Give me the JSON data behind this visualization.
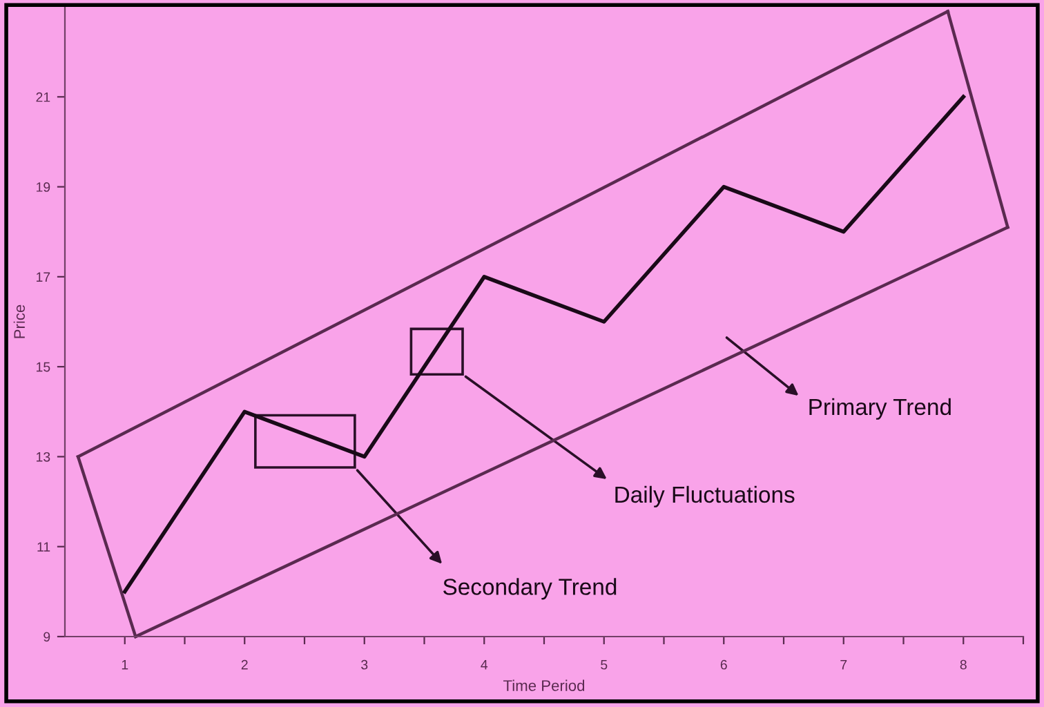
{
  "chart_data": {
    "type": "line",
    "xlabel": "Time Period",
    "ylabel": "Price",
    "x": [
      1,
      2,
      3,
      4,
      5,
      6,
      7,
      8
    ],
    "series": [
      {
        "color": "#1a0a18",
        "values": [
          10,
          14,
          13,
          17,
          16,
          19,
          18,
          21
        ]
      },
      {
        "color": "#5a2a50",
        "x": [
          0.61,
          7.87
        ],
        "values": [
          13,
          22.9
        ]
      },
      {
        "color": "#5a2a50",
        "x": [
          1.09,
          8.37
        ],
        "values": [
          9,
          18.1
        ]
      },
      {
        "color": "#5a2a50",
        "x": [
          0.61,
          1.09
        ],
        "values": [
          13,
          9
        ]
      },
      {
        "color": "#5a2a50",
        "x": [
          7.87,
          8.37
        ],
        "values": [
          22.9,
          18.1
        ]
      }
    ],
    "xlim": [
      0.5,
      8.5
    ],
    "xticks": [
      1,
      {
        "value": 1.5,
        "label": null
      },
      2,
      {
        "value": 2.5,
        "label": null
      },
      3,
      {
        "value": 3.5,
        "label": null
      },
      4,
      {
        "value": 4.5,
        "label": null
      },
      5,
      {
        "value": 5.5,
        "label": null
      },
      6,
      {
        "value": 6.5,
        "label": null
      },
      7,
      {
        "value": 7.5,
        "label": null
      },
      8,
      {
        "value": 8.5,
        "label": null
      }
    ],
    "ylim": [
      9,
      23
    ],
    "yticks": [
      9,
      11,
      13,
      15,
      17,
      19,
      21
    ],
    "grid": false,
    "legend": false,
    "marker": "none",
    "line_style": "solid",
    "annotations": [
      "Primary Trend",
      "Secondary Trend",
      "Daily Fluctuations"
    ]
  }
}
